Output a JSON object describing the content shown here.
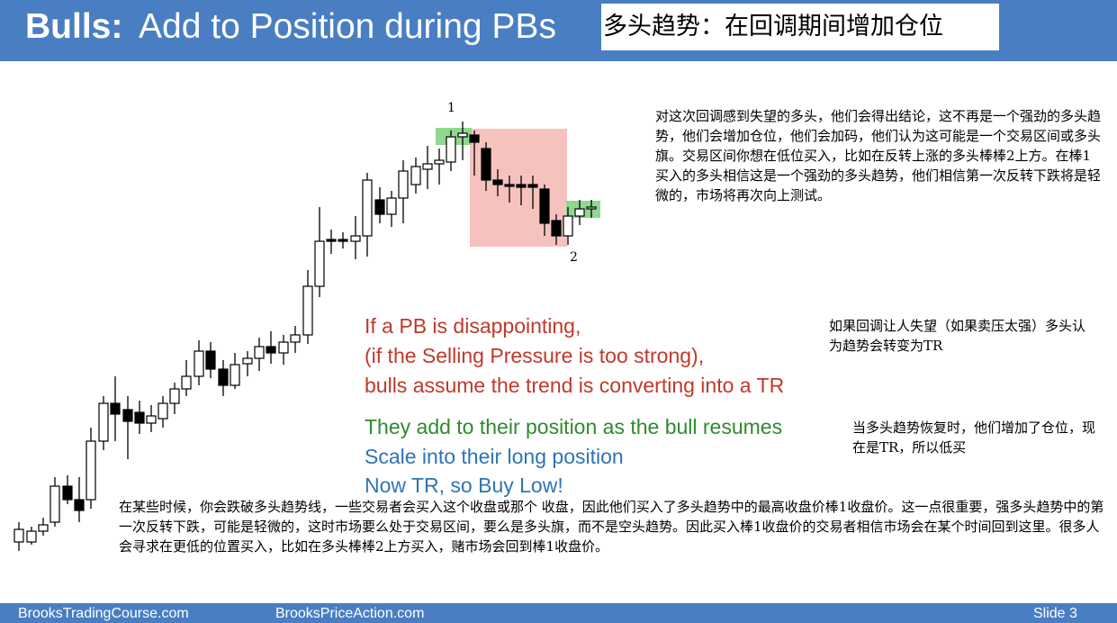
{
  "header": {
    "title_bold": "Bulls:",
    "title_rest": "Add to Position during PBs",
    "title_cn": "多头趋势：在回调期间增加仓位"
  },
  "chart": {
    "bar_label_1": "1",
    "bar_label_2": "2"
  },
  "notes": {
    "top_right_cn": "对这次回调感到失望的多头，他们会得出结论，这不再是一个强劲的多头趋势，他们会增加仓位，他们会加码，他们认为这可能是一个交易区间或多头旗。交易区间你想在低位买入，比如在反转上涨的多头棒棒2上方。在棒1买入的多头相信这是一个强劲的多头趋势，他们相信第一次反转下跌将是轻微的，市场将再次向上测试。",
    "mid_right_cn": "如果回调让人失望（如果卖压太强）多头认为趋势会转变为TR",
    "lower_right_cn": "当多头趋势恢复时，他们增加了仓位，现在是TR，所以低买",
    "bottom_cn": "在某些时候，你会跌破多头趋势线，一些交易者会买入这个收盘或那个 收盘，因此他们买入了多头趋势中的最高收盘价棒1收盘价。这一点很重要，强多头趋势中的第一次反转下跌，可能是轻微的，这时市场要么处于交易区间，要么是多头旗，而不是空头趋势。因此买入棒1收盘价的交易者相信市场会在某个时间回到这里。很多人会寻求在更低的位置买入，比如在多头棒棒2上方买入，赌市场会回到棒1收盘价。"
  },
  "english": {
    "line1": "If a PB is disappointing,",
    "line2": "(if the Selling Pressure is too strong),",
    "line3": "bulls assume the trend is converting into a TR",
    "line4": "They add to their position as the bull resumes",
    "line5": "Scale into their long position",
    "line6": "Now TR, so Buy Low!"
  },
  "footer": {
    "left": "BrooksTradingCourse.com",
    "center": "BrooksPriceAction.com",
    "slide": "Slide  3"
  },
  "colors": {
    "header_bg": "#4a7ec2",
    "red_text": "#c0392b",
    "green_text": "#2e8b2e",
    "blue_text": "#2e74b5",
    "pullback_box": "#f4b7b2",
    "signal_highlight": "#8fd88f"
  }
}
